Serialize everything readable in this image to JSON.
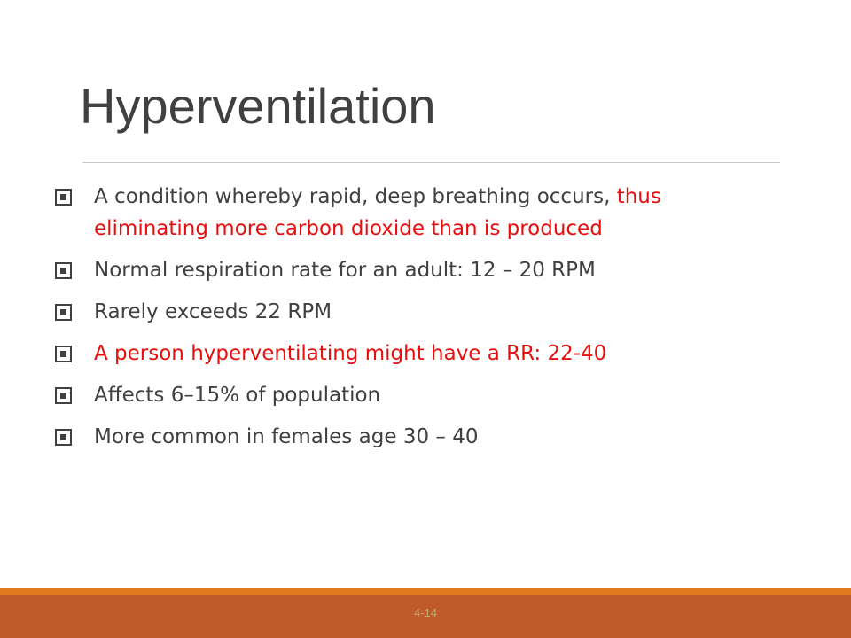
{
  "slide": {
    "title": "Hyperventilation",
    "slide_number": "4-14"
  },
  "colors": {
    "title_text": "#404040",
    "body_text": "#404040",
    "emphasis_red": "#e80e0e",
    "footer_band": "#bf5a2c",
    "footer_accent": "#e07a1f",
    "rule": "#c8c8c8"
  },
  "icons": {
    "bullet_marker": "square-bullet-icon"
  },
  "bullets": [
    {
      "segments": [
        {
          "text": "A condition whereby rapid, deep breathing occurs, ",
          "color": "dark"
        },
        {
          "text": "thus eliminating more carbon dioxide than is produced",
          "color": "red"
        }
      ]
    },
    {
      "segments": [
        {
          "text": "Normal respiration rate for an adult: 12 – 20 RPM",
          "color": "dark"
        }
      ]
    },
    {
      "segments": [
        {
          "text": "Rarely exceeds 22 RPM",
          "color": "dark"
        }
      ]
    },
    {
      "segments": [
        {
          "text": "A person hyperventilating might have a RR: 22-40",
          "color": "red"
        }
      ]
    },
    {
      "segments": [
        {
          "text": "Affects 6–15% of population",
          "color": "dark"
        }
      ]
    },
    {
      "segments": [
        {
          "text": "More common in females age 30 – 40",
          "color": "dark"
        }
      ]
    }
  ]
}
